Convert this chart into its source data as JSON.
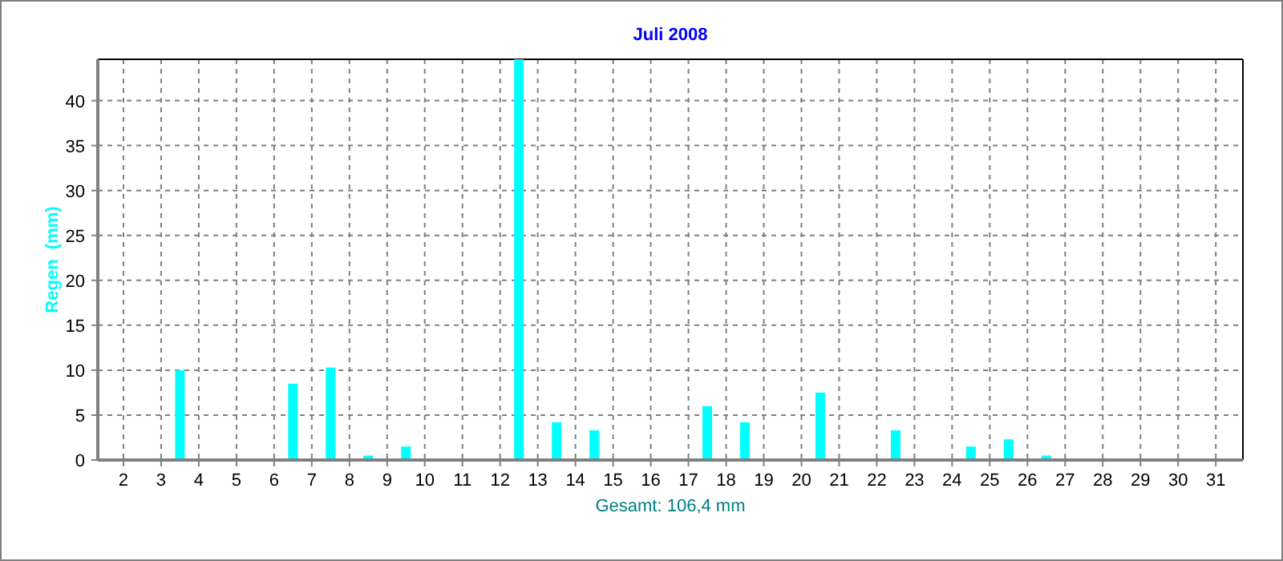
{
  "chart_data": {
    "type": "bar",
    "title": "Juli 2008",
    "xlabel": "Gesamt: 106,4 mm",
    "ylabel": "Regen  (mm)",
    "color": "#00ffff",
    "x": [
      1.5,
      2.5,
      3.5,
      4.5,
      5.5,
      6.5,
      7.5,
      8.5,
      9.5,
      10.5,
      11.5,
      12.5,
      13.5,
      14.5,
      15.5,
      16.5,
      17.5,
      18.5,
      19.5,
      20.5,
      21.5,
      22.5,
      23.5,
      24.5,
      25.5,
      26.5,
      27.5,
      28.5,
      29.5,
      30.5,
      31.5
    ],
    "values": [
      0,
      0,
      10,
      0,
      0,
      8.5,
      10.3,
      0.5,
      1.5,
      0,
      0,
      44.6,
      4.2,
      3.3,
      0,
      0,
      6,
      4.2,
      0,
      7.5,
      0,
      3.3,
      0,
      1.5,
      2.3,
      0.5,
      0,
      0,
      0,
      0,
      0
    ],
    "xlim": [
      1.32,
      31.72
    ],
    "xticks": [
      2,
      3,
      4,
      5,
      6,
      7,
      8,
      9,
      10,
      11,
      12,
      13,
      14,
      15,
      16,
      17,
      18,
      19,
      20,
      21,
      22,
      23,
      24,
      25,
      26,
      27,
      28,
      29,
      30,
      31
    ],
    "ylim": [
      0,
      44.6
    ],
    "yticks": [
      0,
      5,
      10,
      15,
      20,
      25,
      30,
      35,
      40
    ],
    "grid": true
  }
}
